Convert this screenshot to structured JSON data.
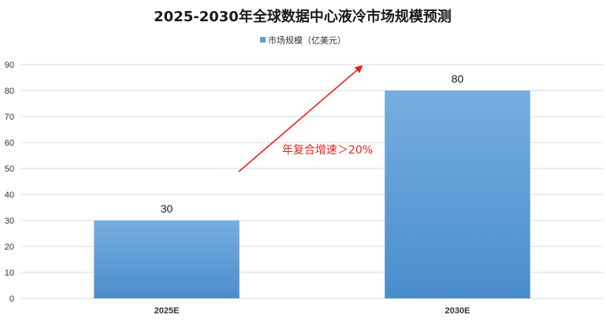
{
  "chart_data": {
    "type": "bar",
    "title": "2025-2030年全球数据中心液冷市场规模预测",
    "categories": [
      "2025E",
      "2030E"
    ],
    "series": [
      {
        "name": "市场规模（亿美元）",
        "values": [
          30,
          80
        ]
      }
    ],
    "ylim": [
      0,
      90
    ],
    "yticks": [
      0,
      10,
      20,
      30,
      40,
      50,
      60,
      70,
      80,
      90
    ],
    "xlabel": "",
    "ylabel": "",
    "grid": true,
    "legend": "top-center",
    "data_labels": true,
    "annotation": {
      "text": "年复合增速＞20%",
      "color": "#e8231c"
    },
    "colors": {
      "bar_top": "#76aee0",
      "bar_bottom": "#4a8dcc",
      "legend_swatch": "#5b9bd5",
      "grid": "#d9d9d9"
    }
  }
}
